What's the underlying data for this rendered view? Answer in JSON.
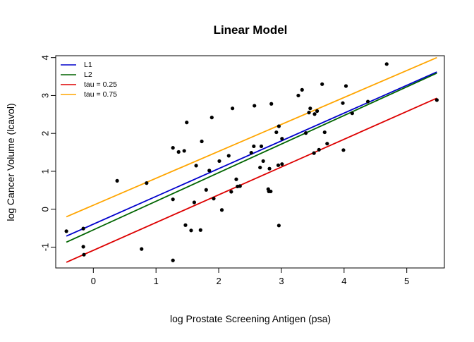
{
  "chart_data": {
    "type": "scatter",
    "title": "Linear Model",
    "xlabel": "log Prostate Screening Antigen (psa)",
    "ylabel": "log Cancer Volume (lcavol)",
    "xlim": [
      -0.6,
      5.6
    ],
    "ylim": [
      -1.55,
      4.05
    ],
    "x_ticks": [
      0,
      1,
      2,
      3,
      4,
      5
    ],
    "y_ticks": [
      -1,
      0,
      1,
      2,
      3,
      4
    ],
    "x_tick_labels": [
      "0",
      "1",
      "2",
      "3",
      "4",
      "5"
    ],
    "y_tick_labels": [
      "-1",
      "0",
      "1",
      "2",
      "3",
      "4"
    ],
    "grid": false,
    "legend_position": "top-left",
    "points": [
      {
        "x": -0.43,
        "y": -0.58
      },
      {
        "x": -0.16,
        "y": -0.99
      },
      {
        "x": -0.16,
        "y": -0.51
      },
      {
        "x": -0.15,
        "y": -1.2
      },
      {
        "x": 0.38,
        "y": 0.75
      },
      {
        "x": 0.77,
        "y": -1.05
      },
      {
        "x": 0.85,
        "y": 0.69
      },
      {
        "x": 1.27,
        "y": 1.62
      },
      {
        "x": 1.27,
        "y": 0.26
      },
      {
        "x": 1.27,
        "y": -1.35
      },
      {
        "x": 1.36,
        "y": 1.51
      },
      {
        "x": 1.45,
        "y": 1.54
      },
      {
        "x": 1.47,
        "y": -0.42
      },
      {
        "x": 1.49,
        "y": 2.29
      },
      {
        "x": 1.56,
        "y": -0.56
      },
      {
        "x": 1.61,
        "y": 0.18
      },
      {
        "x": 1.64,
        "y": 1.15
      },
      {
        "x": 1.71,
        "y": -0.55
      },
      {
        "x": 1.73,
        "y": 1.79
      },
      {
        "x": 1.8,
        "y": 0.51
      },
      {
        "x": 1.85,
        "y": 1.02
      },
      {
        "x": 1.89,
        "y": 2.42
      },
      {
        "x": 1.92,
        "y": 0.28
      },
      {
        "x": 2.01,
        "y": 1.27
      },
      {
        "x": 2.05,
        "y": -0.02
      },
      {
        "x": 2.16,
        "y": 1.41
      },
      {
        "x": 2.2,
        "y": 0.46
      },
      {
        "x": 2.22,
        "y": 2.66
      },
      {
        "x": 2.28,
        "y": 0.79
      },
      {
        "x": 2.3,
        "y": 0.6
      },
      {
        "x": 2.34,
        "y": 0.61
      },
      {
        "x": 2.52,
        "y": 1.49
      },
      {
        "x": 2.56,
        "y": 1.66
      },
      {
        "x": 2.57,
        "y": 2.73
      },
      {
        "x": 2.66,
        "y": 1.1
      },
      {
        "x": 2.68,
        "y": 1.66
      },
      {
        "x": 2.71,
        "y": 1.27
      },
      {
        "x": 2.79,
        "y": 0.53
      },
      {
        "x": 2.8,
        "y": 0.47
      },
      {
        "x": 2.81,
        "y": 1.07
      },
      {
        "x": 2.83,
        "y": 0.47
      },
      {
        "x": 2.84,
        "y": 2.78
      },
      {
        "x": 2.92,
        "y": 2.03
      },
      {
        "x": 2.95,
        "y": 1.16
      },
      {
        "x": 2.96,
        "y": -0.43
      },
      {
        "x": 2.96,
        "y": 2.19
      },
      {
        "x": 3.01,
        "y": 1.86
      },
      {
        "x": 3.01,
        "y": 1.19
      },
      {
        "x": 3.27,
        "y": 3.0
      },
      {
        "x": 3.33,
        "y": 3.15
      },
      {
        "x": 3.39,
        "y": 2.01
      },
      {
        "x": 3.44,
        "y": 2.55
      },
      {
        "x": 3.46,
        "y": 2.66
      },
      {
        "x": 3.52,
        "y": 1.48
      },
      {
        "x": 3.53,
        "y": 2.51
      },
      {
        "x": 3.57,
        "y": 2.59
      },
      {
        "x": 3.6,
        "y": 1.57
      },
      {
        "x": 3.65,
        "y": 3.3
      },
      {
        "x": 3.69,
        "y": 2.03
      },
      {
        "x": 3.73,
        "y": 1.73
      },
      {
        "x": 3.98,
        "y": 2.8
      },
      {
        "x": 3.99,
        "y": 1.56
      },
      {
        "x": 4.03,
        "y": 3.25
      },
      {
        "x": 4.13,
        "y": 2.53
      },
      {
        "x": 4.38,
        "y": 2.84
      },
      {
        "x": 4.68,
        "y": 3.83
      },
      {
        "x": 5.48,
        "y": 2.88
      }
    ],
    "series": [
      {
        "name": "L1",
        "color": "#0000cc",
        "x": [
          -0.43,
          5.48
        ],
        "y": [
          -0.71,
          3.62
        ]
      },
      {
        "name": "L2",
        "color": "#006400",
        "x": [
          -0.43,
          5.48
        ],
        "y": [
          -0.87,
          3.59
        ]
      },
      {
        "name": "tau = 0.25",
        "color": "#dd0000",
        "x": [
          -0.43,
          5.48
        ],
        "y": [
          -1.4,
          2.93
        ]
      },
      {
        "name": "tau = 0.75",
        "color": "#ffa500",
        "x": [
          -0.43,
          5.48
        ],
        "y": [
          -0.2,
          4.0
        ]
      }
    ]
  }
}
